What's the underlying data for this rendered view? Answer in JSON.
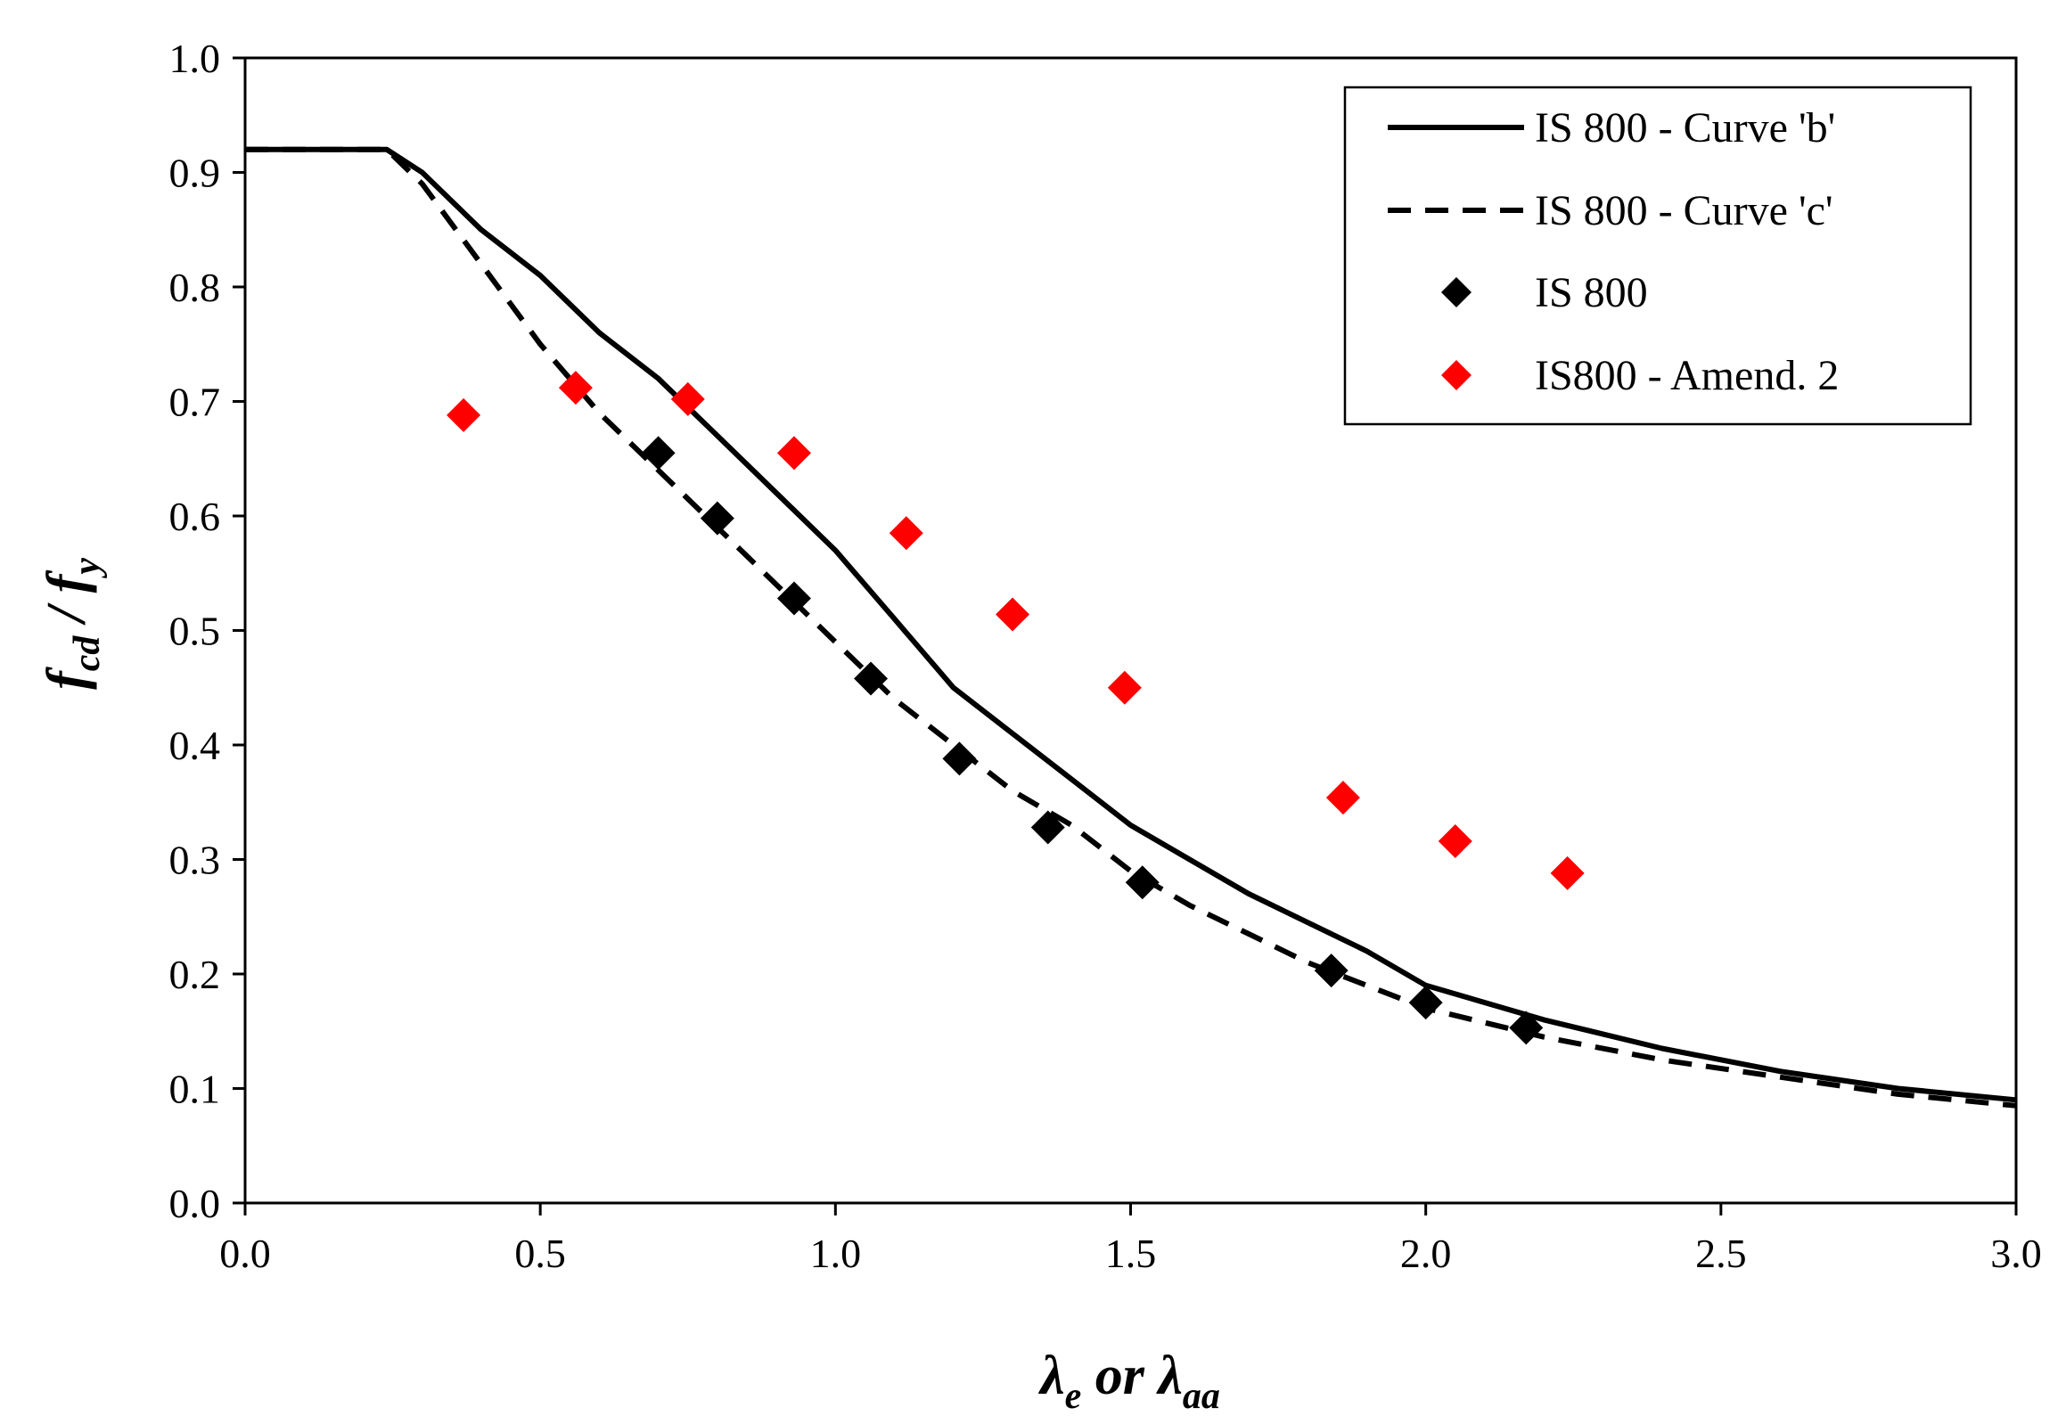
{
  "chart_data": {
    "type": "line",
    "title": "",
    "xlabel": {
      "main": "λ",
      "sub1": "e",
      "middle": " or ",
      "main2": "λ",
      "sub2": "aa"
    },
    "ylabel": {
      "f1": "f",
      "sub1": "cd",
      "slash": " / ",
      "f2": "f",
      "sub2": "y"
    },
    "xlim": [
      0,
      3
    ],
    "ylim": [
      0,
      1
    ],
    "x_ticks": [
      "0.0",
      "0.5",
      "1.0",
      "1.5",
      "2.0",
      "2.5",
      "3.0"
    ],
    "y_ticks": [
      "0.0",
      "0.1",
      "0.2",
      "0.3",
      "0.4",
      "0.5",
      "0.6",
      "0.7",
      "0.8",
      "0.9",
      "1.0"
    ],
    "grid": false,
    "legend_position": "top-right",
    "series": [
      {
        "name": "IS 800 - Curve 'b'",
        "style": "solid-line",
        "color": "#000000",
        "x": [
          0.0,
          0.1,
          0.2,
          0.24,
          0.3,
          0.4,
          0.5,
          0.6,
          0.7,
          0.8,
          0.9,
          1.0,
          1.1,
          1.2,
          1.3,
          1.4,
          1.5,
          1.6,
          1.7,
          1.8,
          1.9,
          2.0,
          2.2,
          2.4,
          2.6,
          2.8,
          3.0
        ],
        "y": [
          0.92,
          0.92,
          0.92,
          0.92,
          0.9,
          0.85,
          0.81,
          0.76,
          0.72,
          0.67,
          0.62,
          0.57,
          0.51,
          0.45,
          0.41,
          0.37,
          0.33,
          0.3,
          0.27,
          0.245,
          0.22,
          0.19,
          0.16,
          0.135,
          0.115,
          0.1,
          0.09
        ]
      },
      {
        "name": "IS 800 - Curve 'c'",
        "style": "dashed-line",
        "color": "#000000",
        "x": [
          0.0,
          0.1,
          0.2,
          0.24,
          0.3,
          0.4,
          0.5,
          0.6,
          0.7,
          0.8,
          0.9,
          1.0,
          1.1,
          1.2,
          1.3,
          1.4,
          1.5,
          1.6,
          1.7,
          1.8,
          1.9,
          2.0,
          2.2,
          2.4,
          2.6,
          2.8,
          3.0
        ],
        "y": [
          0.92,
          0.92,
          0.92,
          0.92,
          0.89,
          0.82,
          0.75,
          0.69,
          0.64,
          0.59,
          0.54,
          0.49,
          0.44,
          0.4,
          0.36,
          0.33,
          0.29,
          0.26,
          0.235,
          0.21,
          0.19,
          0.17,
          0.145,
          0.125,
          0.11,
          0.095,
          0.085
        ]
      },
      {
        "name": "IS 800",
        "style": "diamond-marker",
        "color": "#000000",
        "x": [
          0.7,
          0.8,
          0.93,
          1.06,
          1.21,
          1.36,
          1.52,
          1.84,
          2.0,
          2.17
        ],
        "y": [
          0.655,
          0.598,
          0.528,
          0.458,
          0.388,
          0.328,
          0.28,
          0.203,
          0.175,
          0.153
        ]
      },
      {
        "name": "IS800 - Amend. 2",
        "style": "diamond-marker",
        "color": "#ff0000",
        "x": [
          0.37,
          0.56,
          0.75,
          0.93,
          1.12,
          1.3,
          1.49,
          1.86,
          2.05,
          2.24
        ],
        "y": [
          0.688,
          0.712,
          0.702,
          0.655,
          0.585,
          0.514,
          0.45,
          0.354,
          0.316,
          0.288
        ]
      }
    ]
  }
}
